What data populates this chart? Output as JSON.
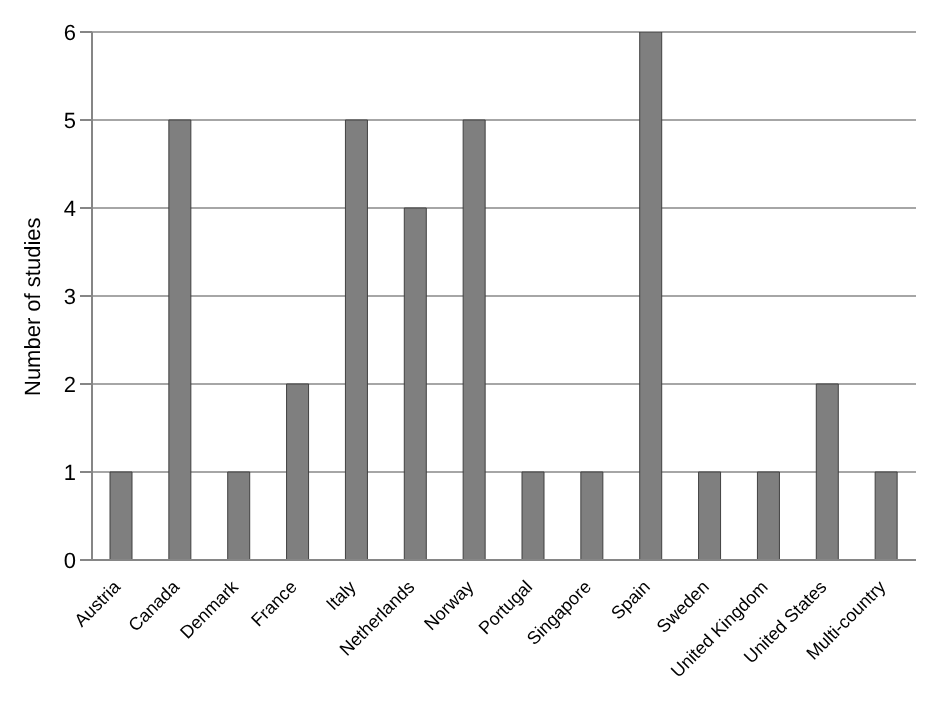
{
  "chart_data": {
    "type": "bar",
    "ylabel": "Number of studies",
    "categories": [
      "Austria",
      "Canada",
      "Denmark",
      "France",
      "Italy",
      "Netherlands",
      "Norway",
      "Portugal",
      "Singapore",
      "Spain",
      "Sweden",
      "United Kingdom",
      "United States",
      "Multi-country"
    ],
    "values": [
      1,
      5,
      1,
      2,
      5,
      4,
      5,
      1,
      1,
      6,
      1,
      1,
      2,
      1
    ],
    "color": "#7f7f7f",
    "ylim": [
      0,
      6
    ],
    "yticks": [
      0,
      1,
      2,
      3,
      4,
      5,
      6
    ],
    "grid": "y"
  }
}
